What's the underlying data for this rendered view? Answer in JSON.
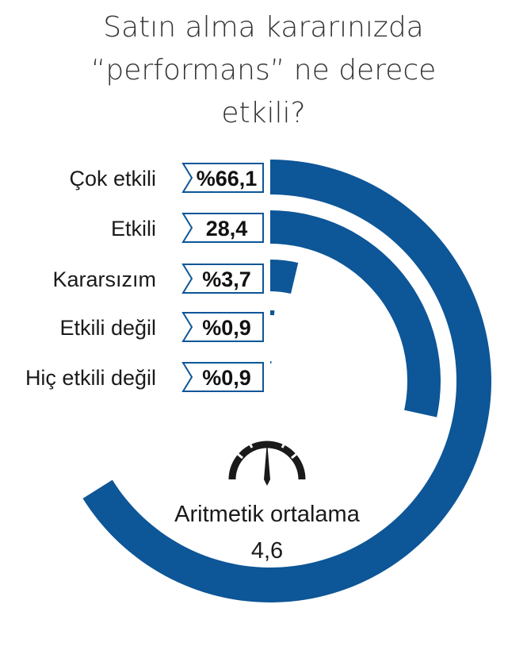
{
  "title_lines": [
    "Satın alma kararınızda",
    "“performans” ne derece",
    "etkili?"
  ],
  "chart_data": {
    "type": "radial-bar",
    "title": "Satın alma kararınızda “performans” ne derece etkili?",
    "categories": [
      "Çok etkili",
      "Etkili",
      "Kararsızım",
      "Etkili değil",
      "Hiç etkili değil"
    ],
    "values": [
      66.1,
      28.4,
      3.7,
      0.9,
      0.9
    ],
    "labels": [
      "%66,1",
      "28,4",
      "%3,7",
      "%0,9",
      "%0,9"
    ],
    "unit": "%",
    "color": "#0d5697"
  },
  "mean": {
    "label": "Aritmetik ortalama",
    "value": "4,6"
  },
  "icons": {
    "gauge": "speedometer-icon"
  }
}
